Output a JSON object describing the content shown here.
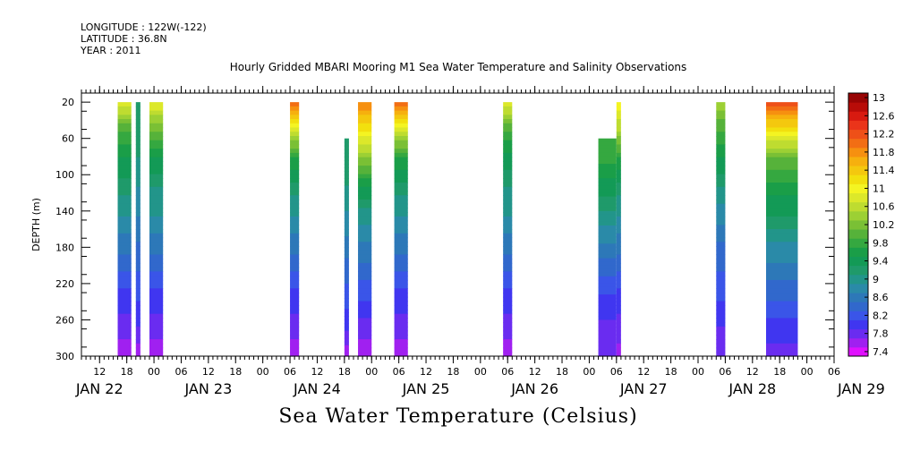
{
  "header": {
    "longitude": "LONGITUDE : 122W(-122)",
    "latitude": "LATITUDE : 36.8N",
    "year": "YEAR : 2011"
  },
  "chart_data": {
    "type": "heatmap",
    "title": "Hourly Gridded MBARI Mooring M1 Sea Water Temperature and Salinity Observations",
    "subtitle": "Sea Water Temperature (Celsius)",
    "ylabel": "DEPTH (m)",
    "xlabel": "",
    "x_units": "hours since JAN 22 00:00 (2011)",
    "xlim": [
      8,
      174
    ],
    "ylim": [
      300,
      10
    ],
    "y_ticks": [
      20,
      60,
      100,
      140,
      180,
      220,
      260,
      300
    ],
    "x_hour_ticks": [
      {
        "h": 12,
        "label": "12"
      },
      {
        "h": 18,
        "label": "18"
      },
      {
        "h": 24,
        "label": "00"
      },
      {
        "h": 30,
        "label": "06"
      },
      {
        "h": 36,
        "label": "12"
      },
      {
        "h": 42,
        "label": "18"
      },
      {
        "h": 48,
        "label": "00"
      },
      {
        "h": 54,
        "label": "06"
      },
      {
        "h": 60,
        "label": "12"
      },
      {
        "h": 66,
        "label": "18"
      },
      {
        "h": 72,
        "label": "00"
      },
      {
        "h": 78,
        "label": "06"
      },
      {
        "h": 84,
        "label": "12"
      },
      {
        "h": 90,
        "label": "18"
      },
      {
        "h": 96,
        "label": "00"
      },
      {
        "h": 102,
        "label": "06"
      },
      {
        "h": 108,
        "label": "12"
      },
      {
        "h": 114,
        "label": "18"
      },
      {
        "h": 120,
        "label": "00"
      },
      {
        "h": 126,
        "label": "06"
      },
      {
        "h": 132,
        "label": "12"
      },
      {
        "h": 138,
        "label": "18"
      },
      {
        "h": 144,
        "label": "00"
      },
      {
        "h": 150,
        "label": "06"
      },
      {
        "h": 156,
        "label": "12"
      },
      {
        "h": 162,
        "label": "18"
      },
      {
        "h": 168,
        "label": "00"
      },
      {
        "h": 174,
        "label": "06"
      }
    ],
    "x_day_labels": [
      {
        "h": 12,
        "label": "JAN 22"
      },
      {
        "h": 36,
        "label": "JAN 23"
      },
      {
        "h": 60,
        "label": "JAN 24"
      },
      {
        "h": 84,
        "label": "JAN 25"
      },
      {
        "h": 108,
        "label": "JAN 26"
      },
      {
        "h": 132,
        "label": "JAN 27"
      },
      {
        "h": 156,
        "label": "JAN 28"
      },
      {
        "h": 180,
        "label": "JAN 29"
      }
    ],
    "colorbar": {
      "levels": [
        7.4,
        7.6,
        7.8,
        8,
        8.2,
        8.4,
        8.6,
        8.8,
        9,
        9.2,
        9.4,
        9.6,
        9.8,
        10,
        10.2,
        10.4,
        10.6,
        10.8,
        11,
        11.2,
        11.4,
        11.6,
        11.8,
        12,
        12.2,
        12.4,
        12.6,
        12.8,
        13,
        13.2
      ],
      "labels": [
        "7.4",
        "7.8",
        "8.2",
        "8.6",
        "9",
        "9.4",
        "9.8",
        "10.2",
        "10.6",
        "11",
        "11.4",
        "11.8",
        "12.2",
        "12.6",
        "13"
      ],
      "colors": [
        "#e010ff",
        "#a020f0",
        "#6a2cf0",
        "#4036f0",
        "#3a55e8",
        "#3168cc",
        "#2d78b8",
        "#2a8aa8",
        "#22958a",
        "#1f9a6a",
        "#139a56",
        "#1a9e48",
        "#35a840",
        "#56b23a",
        "#7ac035",
        "#9cd034",
        "#bedc30",
        "#dce82a",
        "#f4f422",
        "#f2e00e",
        "#f4c80e",
        "#f6b00e",
        "#f69010",
        "#f26e14",
        "#ee5018",
        "#ea341a",
        "#d81a10",
        "#b80c08",
        "#980404"
      ]
    },
    "series": [
      {
        "x0": 16,
        "x1": 19,
        "top": 20,
        "temps": [
          11.0,
          10.0,
          9.6,
          9.3,
          9.0,
          8.7,
          8.4,
          8.1,
          7.9,
          7.6
        ]
      },
      {
        "x0": 20,
        "x1": 21,
        "top": 20,
        "temps": [
          9.4,
          9.3,
          9.2,
          9.0,
          8.8,
          8.6,
          8.4,
          8.2,
          8.0,
          7.6
        ]
      },
      {
        "x0": 23,
        "x1": 26,
        "top": 20,
        "temps": [
          11.0,
          10.2,
          9.6,
          9.2,
          9.0,
          8.7,
          8.4,
          8.1,
          7.9,
          7.6
        ]
      },
      {
        "x0": 54,
        "x1": 56,
        "top": 20,
        "temps": [
          12.2,
          10.8,
          9.8,
          9.3,
          9.0,
          8.7,
          8.4,
          8.1,
          7.9,
          7.6
        ]
      },
      {
        "x0": 66,
        "x1": 67,
        "top": 60,
        "temps": [
          9.3,
          9.3,
          9.2,
          9.0,
          8.8,
          8.6,
          8.4,
          8.2,
          8.0,
          7.6
        ]
      },
      {
        "x0": 69,
        "x1": 72,
        "top": 20,
        "temps": [
          12.0,
          11.2,
          10.4,
          9.6,
          9.1,
          8.8,
          8.5,
          8.2,
          7.9,
          7.6
        ]
      },
      {
        "x0": 77,
        "x1": 80,
        "top": 20,
        "temps": [
          12.2,
          10.8,
          9.8,
          9.3,
          9.0,
          8.7,
          8.4,
          8.1,
          7.9,
          7.6
        ]
      },
      {
        "x0": 101,
        "x1": 103,
        "top": 20,
        "temps": [
          11.0,
          10.0,
          9.5,
          9.2,
          9.0,
          8.7,
          8.4,
          8.1,
          7.9,
          7.6
        ]
      },
      {
        "x0": 122,
        "x1": 126,
        "top": 60,
        "temps": [
          9.8,
          9.8,
          9.5,
          9.2,
          8.9,
          8.6,
          8.3,
          8.1,
          7.9,
          7.8
        ]
      },
      {
        "x0": 126,
        "x1": 127,
        "top": 20,
        "temps": [
          11.2,
          10.6,
          9.8,
          9.3,
          9.0,
          8.7,
          8.4,
          8.1,
          7.9,
          7.7
        ]
      },
      {
        "x0": 148,
        "x1": 150,
        "top": 20,
        "temps": [
          10.6,
          10.0,
          9.6,
          9.2,
          8.9,
          8.6,
          8.4,
          8.2,
          8.0,
          7.9
        ]
      },
      {
        "x0": 159,
        "x1": 166,
        "top": 20,
        "temps": [
          12.4,
          11.2,
          10.2,
          9.7,
          9.4,
          9.0,
          8.7,
          8.4,
          8.1,
          7.9
        ]
      }
    ]
  }
}
